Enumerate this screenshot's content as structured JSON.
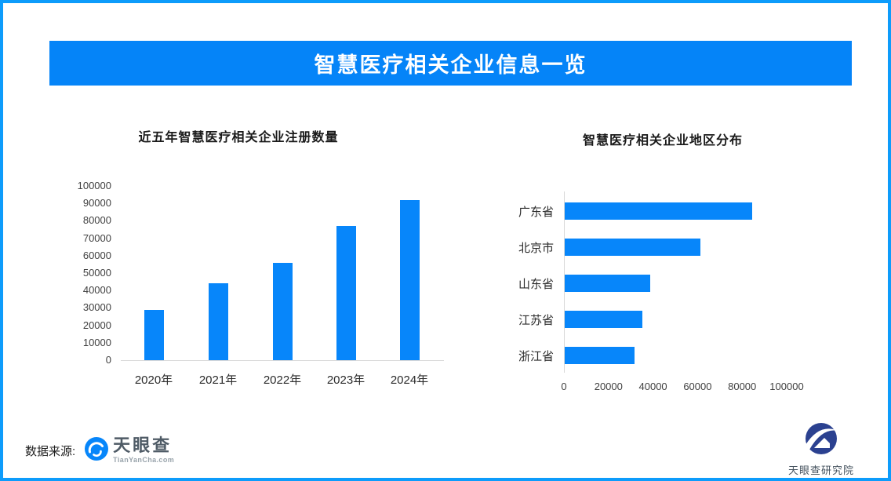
{
  "page": {
    "title": "智慧医疗相关企业信息一览",
    "colors": {
      "brand_blue": "#0584F8",
      "border_blue": "#0D9CFB",
      "bar_blue": "#0786FA",
      "axis_gray": "#D9D9D9"
    }
  },
  "chart_data": [
    {
      "type": "bar",
      "orientation": "vertical",
      "title": "近五年智慧医疗相关企业注册数量",
      "categories": [
        "2020年",
        "2021年",
        "2022年",
        "2023年",
        "2024年"
      ],
      "values": [
        29000,
        44000,
        56000,
        77000,
        92000
      ],
      "xlabel": "",
      "ylabel": "",
      "ylim": [
        0,
        100000
      ],
      "yticks": [
        0,
        10000,
        20000,
        30000,
        40000,
        50000,
        60000,
        70000,
        80000,
        90000,
        100000
      ],
      "bar_color": "#0786FA",
      "grid": false,
      "legend": false
    },
    {
      "type": "bar",
      "orientation": "horizontal",
      "title": "智慧医疗相关企业地区分布",
      "categories": [
        "广东省",
        "北京市",
        "山东省",
        "江苏省",
        "浙江省"
      ],
      "values": [
        84000,
        61000,
        38500,
        35000,
        31500
      ],
      "xlabel": "",
      "ylabel": "",
      "xlim": [
        0,
        100000
      ],
      "xticks": [
        0,
        20000,
        40000,
        60000,
        80000,
        100000
      ],
      "bar_color": "#0786FA",
      "grid": false,
      "legend": false
    }
  ],
  "footer": {
    "source_label": "数据来源:",
    "tianyancha": {
      "name": "天眼查",
      "domain": "TianYanCha.com"
    },
    "research_institute": "天眼查研究院"
  }
}
